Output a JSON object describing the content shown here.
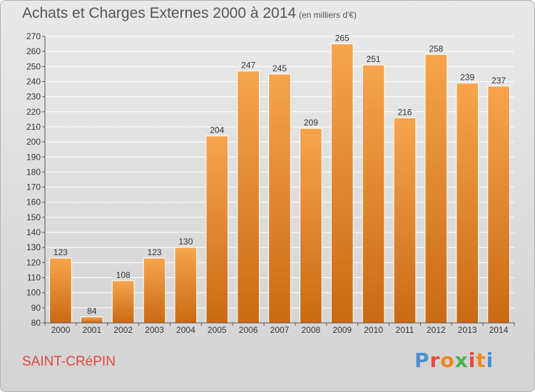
{
  "header": {
    "title": "Achats et Charges Externes 2000 à 2014",
    "subtitle": "(en milliers d'€)"
  },
  "footer": {
    "commune": "SAINT-CRéPIN",
    "logo_text": "Proxiti"
  },
  "colors": {
    "bar_light": "#f7a54d",
    "bar_dark": "#c96a14",
    "logo": [
      "#4a8fd4",
      "#e64a3d",
      "#f08a1c",
      "#4cb050",
      "#e64a3d",
      "#f08a1c",
      "#4a8fd4"
    ]
  },
  "chart_data": {
    "type": "bar",
    "categories": [
      "2000",
      "2001",
      "2002",
      "2003",
      "2004",
      "2005",
      "2006",
      "2007",
      "2008",
      "2009",
      "2010",
      "2011",
      "2012",
      "2013",
      "2014"
    ],
    "values": [
      123,
      84,
      108,
      123,
      130,
      204,
      247,
      245,
      209,
      265,
      251,
      216,
      258,
      239,
      237
    ],
    "ylim": [
      80,
      270
    ],
    "yticks": [
      80,
      90,
      100,
      110,
      120,
      130,
      140,
      150,
      160,
      170,
      180,
      190,
      200,
      210,
      220,
      230,
      240,
      250,
      260,
      270
    ],
    "grid": true,
    "title": "Achats et Charges Externes 2000 à 2014",
    "xlabel": "",
    "ylabel": ""
  }
}
